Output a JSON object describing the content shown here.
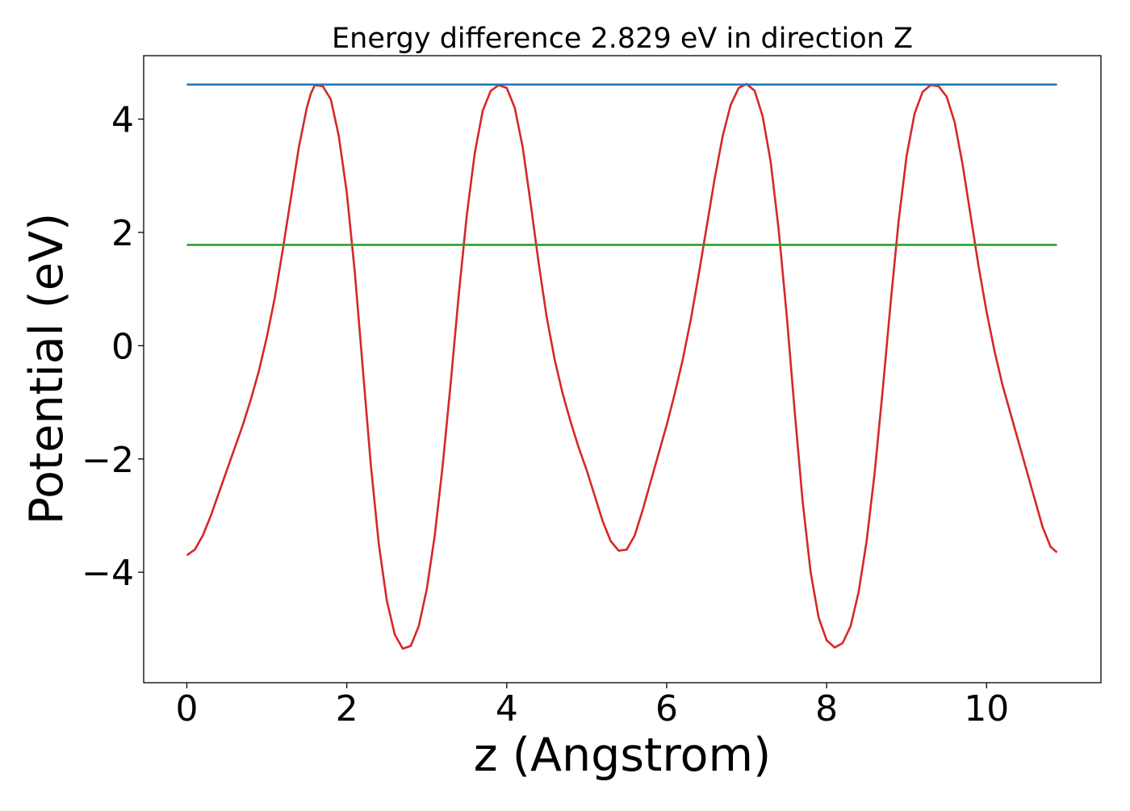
{
  "chart_data": {
    "type": "line",
    "title": "Energy difference 2.829 eV in direction Z",
    "xlabel": "z (Angstrom)",
    "ylabel": "Potential (eV)",
    "xlim": [
      -0.54,
      11.43
    ],
    "ylim": [
      -5.95,
      5.12
    ],
    "xticks": [
      0,
      2,
      4,
      6,
      8,
      10
    ],
    "xtick_labels": [
      "0",
      "2",
      "4",
      "6",
      "8",
      "10"
    ],
    "yticks": [
      -4,
      -2,
      0,
      2,
      4
    ],
    "ytick_labels": [
      "−4",
      "−2",
      "0",
      "2",
      "4"
    ],
    "grid": false,
    "legend": "none",
    "series": [
      {
        "color": "#d62728",
        "points": [
          [
            0.0,
            -3.7
          ],
          [
            0.1,
            -3.6
          ],
          [
            0.2,
            -3.35
          ],
          [
            0.3,
            -3.0
          ],
          [
            0.4,
            -2.6
          ],
          [
            0.5,
            -2.2
          ],
          [
            0.6,
            -1.8
          ],
          [
            0.7,
            -1.4
          ],
          [
            0.8,
            -0.95
          ],
          [
            0.9,
            -0.45
          ],
          [
            1.0,
            0.15
          ],
          [
            1.1,
            0.85
          ],
          [
            1.2,
            1.7
          ],
          [
            1.3,
            2.6
          ],
          [
            1.4,
            3.5
          ],
          [
            1.5,
            4.2
          ],
          [
            1.55,
            4.45
          ],
          [
            1.6,
            4.6
          ],
          [
            1.7,
            4.58
          ],
          [
            1.8,
            4.35
          ],
          [
            1.9,
            3.7
          ],
          [
            2.0,
            2.7
          ],
          [
            2.1,
            1.3
          ],
          [
            2.2,
            -0.4
          ],
          [
            2.3,
            -2.1
          ],
          [
            2.4,
            -3.5
          ],
          [
            2.5,
            -4.5
          ],
          [
            2.6,
            -5.1
          ],
          [
            2.7,
            -5.35
          ],
          [
            2.8,
            -5.3
          ],
          [
            2.9,
            -4.95
          ],
          [
            3.0,
            -4.3
          ],
          [
            3.1,
            -3.35
          ],
          [
            3.2,
            -2.1
          ],
          [
            3.3,
            -0.65
          ],
          [
            3.4,
            0.9
          ],
          [
            3.5,
            2.3
          ],
          [
            3.6,
            3.4
          ],
          [
            3.7,
            4.15
          ],
          [
            3.8,
            4.5
          ],
          [
            3.9,
            4.6
          ],
          [
            4.0,
            4.55
          ],
          [
            4.1,
            4.2
          ],
          [
            4.2,
            3.5
          ],
          [
            4.3,
            2.5
          ],
          [
            4.4,
            1.45
          ],
          [
            4.5,
            0.5
          ],
          [
            4.6,
            -0.25
          ],
          [
            4.7,
            -0.85
          ],
          [
            4.8,
            -1.35
          ],
          [
            4.9,
            -1.8
          ],
          [
            5.0,
            -2.2
          ],
          [
            5.1,
            -2.65
          ],
          [
            5.2,
            -3.1
          ],
          [
            5.3,
            -3.45
          ],
          [
            5.4,
            -3.62
          ],
          [
            5.5,
            -3.6
          ],
          [
            5.6,
            -3.35
          ],
          [
            5.7,
            -2.9
          ],
          [
            5.8,
            -2.4
          ],
          [
            5.9,
            -1.9
          ],
          [
            6.0,
            -1.4
          ],
          [
            6.1,
            -0.85
          ],
          [
            6.2,
            -0.25
          ],
          [
            6.3,
            0.45
          ],
          [
            6.4,
            1.25
          ],
          [
            6.5,
            2.1
          ],
          [
            6.6,
            2.95
          ],
          [
            6.7,
            3.7
          ],
          [
            6.8,
            4.25
          ],
          [
            6.9,
            4.55
          ],
          [
            7.0,
            4.62
          ],
          [
            7.1,
            4.5
          ],
          [
            7.2,
            4.05
          ],
          [
            7.3,
            3.25
          ],
          [
            7.4,
            2.05
          ],
          [
            7.5,
            0.55
          ],
          [
            7.6,
            -1.15
          ],
          [
            7.7,
            -2.75
          ],
          [
            7.8,
            -4.0
          ],
          [
            7.9,
            -4.8
          ],
          [
            8.0,
            -5.2
          ],
          [
            8.1,
            -5.33
          ],
          [
            8.2,
            -5.25
          ],
          [
            8.3,
            -4.95
          ],
          [
            8.4,
            -4.35
          ],
          [
            8.5,
            -3.45
          ],
          [
            8.6,
            -2.25
          ],
          [
            8.7,
            -0.8
          ],
          [
            8.8,
            0.75
          ],
          [
            8.9,
            2.2
          ],
          [
            9.0,
            3.35
          ],
          [
            9.1,
            4.1
          ],
          [
            9.2,
            4.48
          ],
          [
            9.3,
            4.6
          ],
          [
            9.4,
            4.58
          ],
          [
            9.5,
            4.4
          ],
          [
            9.6,
            3.95
          ],
          [
            9.7,
            3.2
          ],
          [
            9.8,
            2.3
          ],
          [
            9.9,
            1.4
          ],
          [
            10.0,
            0.6
          ],
          [
            10.1,
            -0.1
          ],
          [
            10.2,
            -0.7
          ],
          [
            10.3,
            -1.2
          ],
          [
            10.4,
            -1.7
          ],
          [
            10.5,
            -2.2
          ],
          [
            10.6,
            -2.7
          ],
          [
            10.7,
            -3.2
          ],
          [
            10.8,
            -3.55
          ],
          [
            10.88,
            -3.65
          ]
        ]
      },
      {
        "color": "#1f77b4",
        "points": [
          [
            0.0,
            4.61
          ],
          [
            10.88,
            4.61
          ]
        ]
      },
      {
        "color": "#2ca02c",
        "points": [
          [
            0.0,
            1.78
          ],
          [
            10.88,
            1.78
          ]
        ]
      }
    ]
  }
}
